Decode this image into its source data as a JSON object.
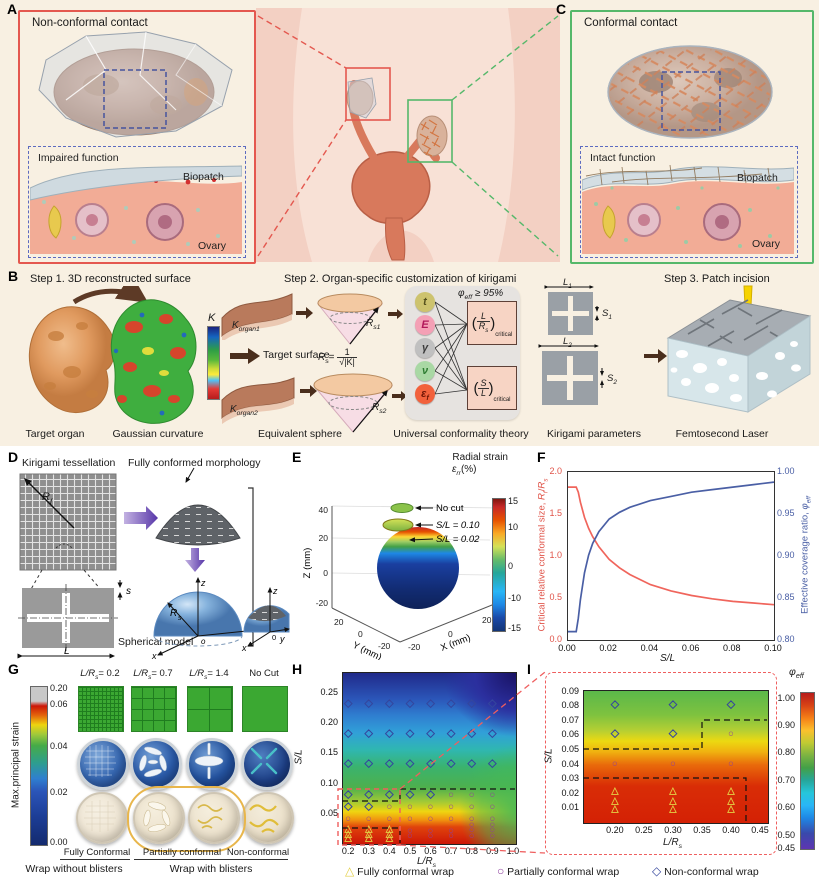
{
  "figure": {
    "background": "#f8f0e2",
    "accent_red": "#e4584f",
    "accent_green": "#55b86a"
  },
  "panels": {
    "a": {
      "label": "A",
      "title": "Non-conformal contact",
      "inset_title": "Impaired function",
      "biopatch": "Biopatch",
      "ovary": "Ovary"
    },
    "c": {
      "label": "C",
      "title": "Conformal contact",
      "inset_title": "Intact function",
      "biopatch": "Biopatch",
      "ovary": "Ovary"
    },
    "b": {
      "label": "B",
      "step1": "Step 1. 3D reconstructed surface",
      "step2": "Step 2. Organ-specific customization of kirigami",
      "step3": "Step 3. Patch incision",
      "k": "K",
      "target_organ": "Target organ",
      "gaussian": "Gaussian curvature",
      "target_surface": "Target surface",
      "korgan1": {
        "base": "K",
        "sub": "organ1"
      },
      "korgan2": {
        "base": "K",
        "sub": "organ2"
      },
      "rs1": {
        "base": "R",
        "sub": "s1"
      },
      "rs2": {
        "base": "R",
        "sub": "s2"
      },
      "formula": {
        "lhs_base": "R",
        "lhs_sub": "s",
        "eq": "=",
        "num": "1",
        "den": "√|K|"
      },
      "equivalent_sphere": "Equivalent sphere",
      "phi": {
        "base": "φ",
        "sub": "eff",
        "rest": " ≥ 95%"
      },
      "nodes": [
        {
          "label": "t",
          "color": "#cdc36e"
        },
        {
          "label": "E",
          "color": "#f4a0b5"
        },
        {
          "label": "γ",
          "color": "#c0c0c0"
        },
        {
          "label": "ν",
          "color": "#a9d8a4"
        },
        {
          "label": "ε",
          "sub": "f",
          "color": "#f2613c"
        }
      ],
      "box1": {
        "open": "(",
        "num": "L",
        "den_base": "R",
        "den_sub": "s",
        "close": ")",
        "sub": "critical"
      },
      "box2": {
        "open": "(",
        "num": "S",
        "den": "L",
        "close": ")",
        "sub": "critical"
      },
      "theory": "Universal conformality theory",
      "params": "Kirigami parameters",
      "l1": {
        "base": "L",
        "sub": "1"
      },
      "s1": {
        "base": "S",
        "sub": "1"
      },
      "l2": {
        "base": "L",
        "sub": "2"
      },
      "s2": {
        "base": "S",
        "sub": "2"
      },
      "femtosecond": "Femtosecond Laser"
    },
    "d": {
      "label": "D",
      "title": "Kirigami tessellation",
      "morphology": "Fully conformed morphology",
      "spherical": "Spherical model",
      "rf": {
        "base": "R",
        "sub": "f"
      },
      "rs": {
        "base": "R",
        "sub": "s"
      },
      "s": "s",
      "l": "L",
      "axes": {
        "x": "x",
        "y": "y",
        "z": "z",
        "o": "o",
        "zero": "0"
      }
    },
    "e": {
      "label": "E",
      "cb_title": "Radial strain",
      "cb_eps": {
        "base": "ε",
        "sub": "rr",
        "rest": "(%)"
      },
      "cb_ticks": [
        "15",
        "10",
        "0",
        "-10",
        "-15"
      ],
      "ann": [
        "No cut",
        "S/L = 0.10",
        "S/L = 0.02"
      ],
      "zlabel": "Z (mm)",
      "ylabel": "Y (mm)",
      "xlabel": "X (mm)",
      "zticks": [
        "40",
        "20",
        "0",
        "-20"
      ],
      "yticks": [
        "20",
        "0",
        "-20"
      ],
      "xticks": [
        "-20",
        "0",
        "20"
      ]
    },
    "f": {
      "label": "F",
      "ylabel_left": {
        "pre": "Critical relative conformal size, ",
        "rbase": "R",
        "rsub": "f",
        "slash": "/",
        "rbase2": "R",
        "rsub2": "s"
      },
      "ylabel_right": {
        "pre": "Effective coverage ratio, ",
        "base": "φ",
        "sub": "eff"
      },
      "xlabel": "S/L"
    },
    "g": {
      "label": "G",
      "cb_label": "Max.principal strain",
      "cb_ticks": [
        "0.20",
        "0.06",
        "0.04",
        "0.02",
        "0.00"
      ],
      "headers": [
        {
          "pre": "L/R",
          "sub": "s",
          "post": "= 0.2"
        },
        {
          "pre": "L/R",
          "sub": "s",
          "post": "= 0.7"
        },
        {
          "pre": "L/R",
          "sub": "s",
          "post": "= 1.4"
        },
        {
          "text": "No Cut"
        }
      ],
      "row_labels": [
        "Fully Conformal",
        "Partially conformal",
        "Non-conformal"
      ],
      "group_labels": [
        "Wrap without blisters",
        "Wrap with blisters"
      ]
    },
    "h": {
      "label": "H",
      "ylabel": "S/L",
      "xlabel_pre": "L/R",
      "xlabel_sub": "s"
    },
    "i": {
      "label": "I",
      "ylabel": "S/L",
      "xlabel_pre": "L/R",
      "xlabel_sub": "s",
      "cb_title": {
        "base": "φ",
        "sub": "eff"
      },
      "cb_ticks": [
        "1.00",
        "0.90",
        "0.80",
        "0.70",
        "0.60",
        "0.50",
        "0.45"
      ]
    }
  },
  "legend": {
    "items": [
      {
        "symbol": "triangle",
        "label": "Fully conformal wrap"
      },
      {
        "symbol": "circle",
        "label": "Partially conformal wrap"
      },
      {
        "symbol": "diamond",
        "label": "Non-conformal wrap"
      }
    ]
  },
  "marker_glyphs": {
    "triangle": "△",
    "circle": "○",
    "diamond": "◇"
  },
  "marker_colors": {
    "triangle": "#e3cf45",
    "circle": "#8e3f9e",
    "diamond": "#34469d"
  },
  "chart_data": [
    {
      "id": "f",
      "type": "line",
      "title": "",
      "xlabel": "S/L",
      "xlim": [
        0,
        0.1
      ],
      "xticks": [
        0,
        0.02,
        0.04,
        0.06,
        0.08,
        0.1
      ],
      "xtick_labels": [
        "0.00",
        "0.02",
        "0.04",
        "0.06",
        "0.08",
        "0.10"
      ],
      "left_ylim": [
        0,
        2
      ],
      "left_yticks": [
        0,
        0.5,
        1,
        1.5,
        2
      ],
      "left_ytick_labels": [
        "0.0",
        "0.5",
        "1.0",
        "1.5",
        "2.0"
      ],
      "right_ylim": [
        0.8,
        1.0
      ],
      "right_yticks": [
        0.8,
        0.85,
        0.9,
        0.95,
        1.0
      ],
      "right_ytick_labels": [
        "0.80",
        "0.85",
        "0.90",
        "0.95",
        "1.00"
      ],
      "series": [
        {
          "name": "Critical relative conformal size, Rf/Rs",
          "axis": "left",
          "color": "#f0655c",
          "x": [
            0,
            0.004,
            0.005,
            0.006,
            0.008,
            0.01,
            0.012,
            0.015,
            0.02,
            0.025,
            0.03,
            0.04,
            0.05,
            0.06,
            0.07,
            0.08,
            0.09,
            0.1
          ],
          "y": [
            1.82,
            1.82,
            1.76,
            1.64,
            1.46,
            1.33,
            1.23,
            1.11,
            0.96,
            0.86,
            0.78,
            0.66,
            0.585,
            0.53,
            0.49,
            0.46,
            0.44,
            0.42
          ]
        },
        {
          "name": "Effective coverage ratio, φeff",
          "axis": "right",
          "color": "#4a5fa5",
          "x": [
            0,
            0.004,
            0.005,
            0.006,
            0.008,
            0.01,
            0.012,
            0.015,
            0.02,
            0.025,
            0.03,
            0.04,
            0.05,
            0.06,
            0.07,
            0.08,
            0.09,
            0.1
          ],
          "y": [
            0.81,
            0.81,
            0.826,
            0.848,
            0.88,
            0.901,
            0.915,
            0.929,
            0.944,
            0.952,
            0.958,
            0.966,
            0.971,
            0.976,
            0.979,
            0.982,
            0.985,
            0.988
          ]
        }
      ]
    },
    {
      "id": "h",
      "type": "heatmap-scatter",
      "xlabel": "L/Rs",
      "ylabel": "S/L",
      "xlim": [
        0.17,
        1.01
      ],
      "ylim": [
        0,
        0.283
      ],
      "xticks": [
        0.2,
        0.3,
        0.4,
        0.5,
        0.6,
        0.7,
        0.8,
        0.9,
        1.0
      ],
      "xtick_labels": [
        "0.2",
        "0.3",
        "0.4",
        "0.5",
        "0.6",
        "0.7",
        "0.8",
        "0.9",
        "1.0"
      ],
      "yticks": [
        0.05,
        0.1,
        0.15,
        0.2,
        0.25
      ],
      "ytick_labels": [
        "0.05",
        "0.10",
        "0.15",
        "0.20",
        "0.25"
      ],
      "colormap": "jet, red (high phi_eff) bottom-left to dark blue (low) top-right",
      "markers": {
        "diamond": [
          [
            0.2,
            0.23
          ],
          [
            0.3,
            0.23
          ],
          [
            0.4,
            0.23
          ],
          [
            0.5,
            0.23
          ],
          [
            0.6,
            0.23
          ],
          [
            0.7,
            0.23
          ],
          [
            0.8,
            0.23
          ],
          [
            0.9,
            0.23
          ],
          [
            0.2,
            0.18
          ],
          [
            0.3,
            0.18
          ],
          [
            0.4,
            0.18
          ],
          [
            0.5,
            0.18
          ],
          [
            0.6,
            0.18
          ],
          [
            0.7,
            0.18
          ],
          [
            0.8,
            0.18
          ],
          [
            0.9,
            0.18
          ],
          [
            0.2,
            0.13
          ],
          [
            0.3,
            0.13
          ],
          [
            0.4,
            0.13
          ],
          [
            0.5,
            0.13
          ],
          [
            0.6,
            0.13
          ],
          [
            0.7,
            0.13
          ],
          [
            0.8,
            0.13
          ],
          [
            0.9,
            0.13
          ],
          [
            0.2,
            0.08
          ],
          [
            0.3,
            0.08
          ],
          [
            0.4,
            0.08
          ],
          [
            0.5,
            0.08
          ],
          [
            0.6,
            0.08
          ],
          [
            0.2,
            0.06
          ],
          [
            0.3,
            0.06
          ]
        ],
        "circle": [
          [
            0.7,
            0.08
          ],
          [
            0.8,
            0.08
          ],
          [
            0.9,
            0.08
          ],
          [
            0.4,
            0.06
          ],
          [
            0.5,
            0.06
          ],
          [
            0.6,
            0.06
          ],
          [
            0.7,
            0.06
          ],
          [
            0.8,
            0.06
          ],
          [
            0.9,
            0.06
          ],
          [
            0.2,
            0.04
          ],
          [
            0.3,
            0.04
          ],
          [
            0.4,
            0.04
          ],
          [
            0.5,
            0.04
          ],
          [
            0.6,
            0.04
          ],
          [
            0.7,
            0.04
          ],
          [
            0.8,
            0.04
          ],
          [
            0.9,
            0.04
          ],
          [
            0.8,
            0.03
          ],
          [
            0.9,
            0.03
          ],
          [
            0.5,
            0.02
          ],
          [
            0.6,
            0.02
          ],
          [
            0.7,
            0.02
          ],
          [
            0.8,
            0.022
          ],
          [
            0.9,
            0.022
          ],
          [
            0.5,
            0.011
          ],
          [
            0.6,
            0.011
          ],
          [
            0.7,
            0.011
          ],
          [
            0.8,
            0.012
          ],
          [
            0.9,
            0.012
          ]
        ],
        "triangle": [
          [
            0.2,
            0.023
          ],
          [
            0.2,
            0.015
          ],
          [
            0.2,
            0.008
          ],
          [
            0.3,
            0.023
          ],
          [
            0.3,
            0.015
          ],
          [
            0.3,
            0.008
          ],
          [
            0.4,
            0.023
          ],
          [
            0.4,
            0.015
          ],
          [
            0.4,
            0.008
          ]
        ]
      }
    },
    {
      "id": "i",
      "type": "heatmap-scatter",
      "xlabel": "L/Rs",
      "ylabel": "S/L",
      "xlim": [
        0.145,
        0.462
      ],
      "ylim": [
        0,
        0.0905
      ],
      "xticks": [
        0.2,
        0.25,
        0.3,
        0.35,
        0.4,
        0.45
      ],
      "xtick_labels": [
        "0.20",
        "0.25",
        "0.30",
        "0.35",
        "0.40",
        "0.45"
      ],
      "yticks": [
        0.01,
        0.02,
        0.03,
        0.04,
        0.05,
        0.06,
        0.07,
        0.08,
        0.09
      ],
      "ytick_labels": [
        "0.01",
        "0.02",
        "0.03",
        "0.04",
        "0.05",
        "0.06",
        "0.07",
        "0.08",
        "0.09"
      ],
      "colorbar": {
        "title": "φeff",
        "range": [
          0.45,
          1.0
        ],
        "tick_labels": [
          "1.00",
          "0.90",
          "0.80",
          "0.70",
          "0.60",
          "0.50",
          "0.45"
        ]
      },
      "markers": {
        "diamond": [
          [
            0.2,
            0.08
          ],
          [
            0.3,
            0.08
          ],
          [
            0.4,
            0.08
          ],
          [
            0.2,
            0.06
          ],
          [
            0.3,
            0.06
          ]
        ],
        "circle": [
          [
            0.4,
            0.06
          ],
          [
            0.2,
            0.04
          ],
          [
            0.3,
            0.04
          ],
          [
            0.4,
            0.04
          ]
        ],
        "triangle": [
          [
            0.2,
            0.021
          ],
          [
            0.2,
            0.0145
          ],
          [
            0.2,
            0.009
          ],
          [
            0.3,
            0.021
          ],
          [
            0.3,
            0.0145
          ],
          [
            0.3,
            0.009
          ],
          [
            0.4,
            0.021
          ],
          [
            0.4,
            0.0145
          ],
          [
            0.4,
            0.009
          ]
        ]
      }
    }
  ]
}
